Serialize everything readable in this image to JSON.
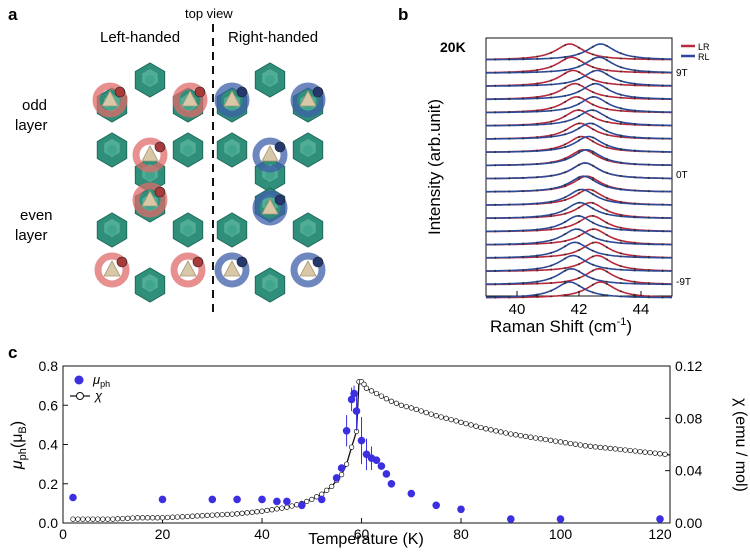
{
  "panels": {
    "a": {
      "label": "a",
      "top_view": "top view",
      "left": "Left-handed",
      "right": "Right-handed",
      "odd_1": "odd",
      "odd_2": "layer",
      "even_1": "even",
      "even_2": "layer",
      "colors": {
        "octahedron": "#2f8f7a",
        "left_ring": "#e06a6a",
        "right_ring": "#3d5fa8",
        "triangle": "#d8c8a8"
      }
    },
    "b": {
      "label": "b",
      "temp": "20K",
      "legend": [
        {
          "name": "LR",
          "color": "#b8283a"
        },
        {
          "name": "RL",
          "color": "#2a4a9a"
        }
      ],
      "field_labels": [
        "9T",
        "0T",
        "-9T"
      ],
      "xlabel": "Raman Shift (cm",
      "xlabel_sup": "-1",
      "xlabel_end": ")",
      "ylabel": "Intensity (arb.unit)",
      "xticks": [
        40,
        42,
        44
      ],
      "xlim": [
        39,
        45
      ],
      "n_spectra": 19
    },
    "c": {
      "label": "c",
      "xlabel": "Temperature (K)",
      "ylabel_left": "μ",
      "ylabel_left_sub": "ph",
      "ylabel_left_end": "(μ",
      "ylabel_left_sub2": "B",
      "ylabel_left_end2": ")",
      "ylabel_right": "χ (emu / mol)",
      "legend_mu": "μ",
      "legend_mu_sub": "ph",
      "legend_chi": "χ"
    }
  },
  "chart_data": [
    {
      "type": "scatter",
      "panel": "c",
      "xlabel": "Temperature (K)",
      "xlim": [
        0,
        122
      ],
      "xticks": [
        0,
        20,
        40,
        60,
        80,
        100,
        120
      ],
      "ylim_left": [
        0,
        0.8
      ],
      "yticks_left": [
        0.0,
        0.2,
        0.4,
        0.6,
        0.8
      ],
      "ylim_right": [
        0,
        0.12
      ],
      "yticks_right": [
        0.0,
        0.04,
        0.08,
        0.12
      ],
      "series": [
        {
          "name": "μph",
          "axis": "left",
          "color": "#3b2fe0",
          "points": [
            [
              2,
              0.13
            ],
            [
              20,
              0.12
            ],
            [
              30,
              0.12
            ],
            [
              35,
              0.12
            ],
            [
              40,
              0.12
            ],
            [
              43,
              0.11
            ],
            [
              45,
              0.11
            ],
            [
              48,
              0.09
            ],
            [
              52,
              0.12
            ],
            [
              55,
              0.23
            ],
            [
              56,
              0.28
            ],
            [
              57,
              0.47
            ],
            [
              58,
              0.63
            ],
            [
              58.5,
              0.66
            ],
            [
              59,
              0.57
            ],
            [
              60,
              0.42
            ],
            [
              61,
              0.35
            ],
            [
              62,
              0.33
            ],
            [
              63,
              0.32
            ],
            [
              64,
              0.29
            ],
            [
              65,
              0.25
            ],
            [
              66,
              0.2
            ],
            [
              70,
              0.15
            ],
            [
              75,
              0.09
            ],
            [
              80,
              0.07
            ],
            [
              90,
              0.02
            ],
            [
              100,
              0.02
            ],
            [
              120,
              0.02
            ]
          ],
          "errors": [
            [
              57,
              0.08
            ],
            [
              58,
              0.06
            ],
            [
              58.5,
              0.04
            ],
            [
              59,
              0.1
            ],
            [
              60,
              0.12
            ],
            [
              61,
              0.08
            ],
            [
              62,
              0.06
            ]
          ]
        },
        {
          "name": "χ",
          "axis": "right",
          "color": "#111111",
          "points": [
            [
              2,
              0.003
            ],
            [
              5,
              0.003
            ],
            [
              10,
              0.003
            ],
            [
              15,
              0.004
            ],
            [
              20,
              0.004
            ],
            [
              25,
              0.005
            ],
            [
              30,
              0.006
            ],
            [
              35,
              0.007
            ],
            [
              40,
              0.009
            ],
            [
              45,
              0.012
            ],
            [
              48,
              0.015
            ],
            [
              50,
              0.018
            ],
            [
              52,
              0.022
            ],
            [
              54,
              0.028
            ],
            [
              56,
              0.037
            ],
            [
              57,
              0.045
            ],
            [
              58,
              0.058
            ],
            [
              59,
              0.07
            ],
            [
              59.5,
              0.108
            ],
            [
              60,
              0.108
            ],
            [
              60.5,
              0.106
            ],
            [
              61,
              0.103
            ],
            [
              62,
              0.101
            ],
            [
              63,
              0.099
            ],
            [
              64,
              0.097
            ],
            [
              66,
              0.093
            ],
            [
              68,
              0.09
            ],
            [
              70,
              0.088
            ],
            [
              75,
              0.082
            ],
            [
              80,
              0.077
            ],
            [
              85,
              0.072
            ],
            [
              90,
              0.068
            ],
            [
              95,
              0.065
            ],
            [
              100,
              0.062
            ],
            [
              105,
              0.059
            ],
            [
              110,
              0.057
            ],
            [
              115,
              0.055
            ],
            [
              120,
              0.053
            ],
            [
              122,
              0.052
            ]
          ]
        }
      ]
    },
    {
      "type": "line",
      "panel": "b",
      "xlabel": "Raman Shift (cm-1)",
      "ylabel": "Intensity (arb.unit)",
      "xlim": [
        39,
        45
      ],
      "field_range_T": [
        -9,
        9
      ],
      "series": [
        {
          "name": "LR",
          "peak_center_at_9T": 41.7,
          "peak_center_at_-9T": 42.7
        },
        {
          "name": "RL",
          "peak_center_at_9T": 42.7,
          "peak_center_at_-9T": 41.7
        }
      ]
    }
  ]
}
